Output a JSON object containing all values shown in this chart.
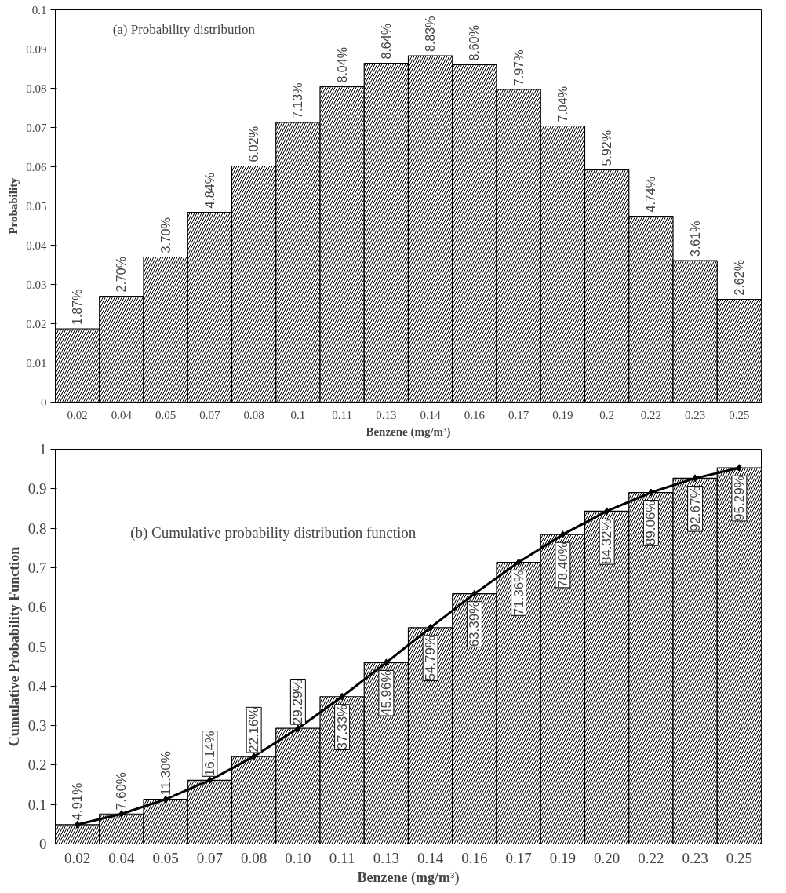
{
  "chart_data": [
    {
      "type": "bar",
      "title": "(a) Probability distribution",
      "xlabel": "Benzene (mg/m³)",
      "ylabel": "Probability",
      "categories": [
        "0.02",
        "0.04",
        "0.05",
        "0.07",
        "0.08",
        "0.1",
        "0.11",
        "0.13",
        "0.14",
        "0.16",
        "0.17",
        "0.19",
        "0.2",
        "0.22",
        "0.23",
        "0.25"
      ],
      "series": [
        {
          "color": "#000000",
          "values": [
            0.0187,
            0.027,
            0.037,
            0.0484,
            0.0602,
            0.0713,
            0.0804,
            0.0864,
            0.0883,
            0.086,
            0.0797,
            0.0704,
            0.0592,
            0.0474,
            0.0361,
            0.0262
          ],
          "value_labels": [
            "1.87%",
            "2.70%",
            "3.70%",
            "4.84%",
            "6.02%",
            "7.13%",
            "8.04%",
            "8.64%",
            "8.83%",
            "8.60%",
            "7.97%",
            "7.04%",
            "5.92%",
            "4.74%",
            "3.61%",
            "2.62%"
          ]
        }
      ],
      "ylim": [
        0,
        0.1
      ],
      "yticks": [
        0,
        0.01,
        0.02,
        0.03,
        0.04,
        0.05,
        0.06,
        0.07,
        0.08,
        0.09,
        0.1
      ],
      "grid": false
    },
    {
      "type": "bar",
      "title": "(b) Cumulative probability distribution function",
      "xlabel": "Benzene (mg/m³)",
      "ylabel": "Cumulative Probability Function",
      "categories": [
        "0.02",
        "0.04",
        "0.05",
        "0.07",
        "0.08",
        "0.10",
        "0.11",
        "0.13",
        "0.14",
        "0.16",
        "0.17",
        "0.19",
        "0.20",
        "0.22",
        "0.23",
        "0.25"
      ],
      "series": [
        {
          "color": "#000000",
          "values": [
            0.0491,
            0.076,
            0.113,
            0.1614,
            0.2216,
            0.2929,
            0.3733,
            0.4596,
            0.5479,
            0.6339,
            0.7136,
            0.784,
            0.8432,
            0.8906,
            0.9267,
            0.9529
          ],
          "value_labels": [
            "4.91%",
            "7.60%",
            "11.30%",
            "16.14%",
            "22.16%",
            "29.29%",
            "37.33%",
            "45.96%",
            "54.79%",
            "63.39%",
            "71.36%",
            "78.40%",
            "84.32%",
            "89.06%",
            "92.67%",
            "95.29%"
          ]
        },
        {
          "type": "line",
          "color": "#000000",
          "marker": "diamond",
          "line_style": "solid",
          "values": [
            0.0491,
            0.076,
            0.113,
            0.1614,
            0.2216,
            0.2929,
            0.3733,
            0.4596,
            0.5479,
            0.6339,
            0.7136,
            0.784,
            0.8432,
            0.8906,
            0.9267,
            0.9529
          ]
        }
      ],
      "ylim": [
        0,
        1
      ],
      "yticks": [
        0,
        0.1,
        0.2,
        0.3,
        0.4,
        0.5,
        0.6,
        0.7,
        0.8,
        0.9,
        1
      ],
      "grid": false
    }
  ]
}
